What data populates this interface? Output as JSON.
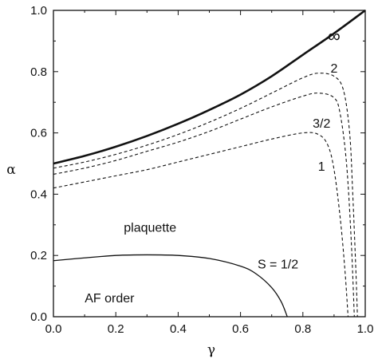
{
  "chart_data": {
    "type": "line",
    "xlabel": "γ",
    "ylabel": "α",
    "xlim": [
      0.0,
      1.0
    ],
    "ylim": [
      0.0,
      1.0
    ],
    "xticks": [
      "0.0",
      "0.2",
      "0.4",
      "0.6",
      "0.8",
      "1.0"
    ],
    "yticks": [
      "0.0",
      "0.2",
      "0.4",
      "0.6",
      "0.8",
      "1.0"
    ],
    "grid": false,
    "legend": "none",
    "series": [
      {
        "name": "∞",
        "style": "solid-thick",
        "points": [
          [
            0.0,
            0.5
          ],
          [
            0.1,
            0.525
          ],
          [
            0.2,
            0.555
          ],
          [
            0.3,
            0.59
          ],
          [
            0.4,
            0.63
          ],
          [
            0.5,
            0.675
          ],
          [
            0.6,
            0.725
          ],
          [
            0.7,
            0.785
          ],
          [
            0.8,
            0.855
          ],
          [
            0.9,
            0.925
          ],
          [
            1.0,
            1.0
          ]
        ]
      },
      {
        "name": "2",
        "style": "dashed",
        "points": [
          [
            0.0,
            0.485
          ],
          [
            0.1,
            0.505
          ],
          [
            0.2,
            0.53
          ],
          [
            0.3,
            0.56
          ],
          [
            0.4,
            0.595
          ],
          [
            0.5,
            0.635
          ],
          [
            0.6,
            0.68
          ],
          [
            0.7,
            0.73
          ],
          [
            0.8,
            0.78
          ],
          [
            0.85,
            0.795
          ],
          [
            0.9,
            0.785
          ],
          [
            0.93,
            0.74
          ],
          [
            0.95,
            0.6
          ],
          [
            0.96,
            0.4
          ],
          [
            0.97,
            0.15
          ],
          [
            0.975,
            0.0
          ]
        ]
      },
      {
        "name": "3/2",
        "style": "dashed",
        "points": [
          [
            0.0,
            0.465
          ],
          [
            0.1,
            0.485
          ],
          [
            0.2,
            0.51
          ],
          [
            0.3,
            0.54
          ],
          [
            0.4,
            0.57
          ],
          [
            0.5,
            0.605
          ],
          [
            0.6,
            0.645
          ],
          [
            0.7,
            0.685
          ],
          [
            0.8,
            0.72
          ],
          [
            0.85,
            0.73
          ],
          [
            0.9,
            0.715
          ],
          [
            0.92,
            0.66
          ],
          [
            0.94,
            0.5
          ],
          [
            0.955,
            0.25
          ],
          [
            0.965,
            0.0
          ]
        ]
      },
      {
        "name": "1",
        "style": "dashed",
        "points": [
          [
            0.0,
            0.42
          ],
          [
            0.1,
            0.44
          ],
          [
            0.2,
            0.46
          ],
          [
            0.3,
            0.48
          ],
          [
            0.4,
            0.505
          ],
          [
            0.5,
            0.53
          ],
          [
            0.6,
            0.555
          ],
          [
            0.7,
            0.58
          ],
          [
            0.8,
            0.6
          ],
          [
            0.85,
            0.595
          ],
          [
            0.88,
            0.56
          ],
          [
            0.9,
            0.48
          ],
          [
            0.92,
            0.32
          ],
          [
            0.935,
            0.15
          ],
          [
            0.945,
            0.0
          ]
        ]
      },
      {
        "name": "S = 1/2",
        "style": "solid",
        "points": [
          [
            0.0,
            0.183
          ],
          [
            0.1,
            0.192
          ],
          [
            0.2,
            0.2
          ],
          [
            0.3,
            0.202
          ],
          [
            0.4,
            0.2
          ],
          [
            0.5,
            0.19
          ],
          [
            0.6,
            0.165
          ],
          [
            0.65,
            0.14
          ],
          [
            0.7,
            0.095
          ],
          [
            0.73,
            0.05
          ],
          [
            0.75,
            0.0
          ]
        ]
      }
    ],
    "annotations": [
      {
        "text": "∞",
        "x": 0.9,
        "y": 0.91,
        "size": "big"
      },
      {
        "text": "2",
        "x": 0.9,
        "y": 0.81
      },
      {
        "text": "3/2",
        "x": 0.86,
        "y": 0.63
      },
      {
        "text": "1",
        "x": 0.86,
        "y": 0.49
      },
      {
        "text": "plaquette",
        "x": 0.31,
        "y": 0.29
      },
      {
        "text": "S = 1/2",
        "x": 0.72,
        "y": 0.17
      },
      {
        "text": "AF order",
        "x": 0.18,
        "y": 0.06
      }
    ]
  }
}
